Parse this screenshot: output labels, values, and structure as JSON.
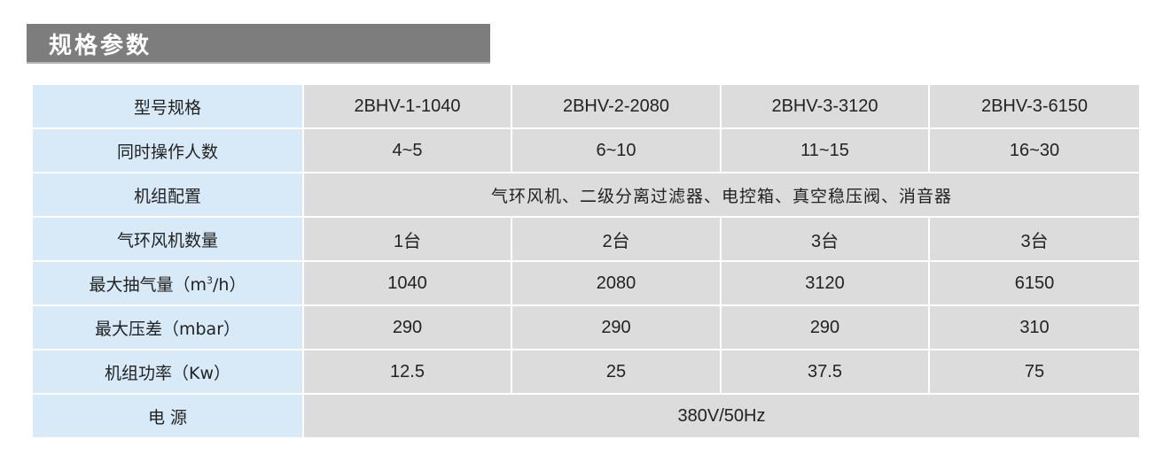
{
  "section_title": "规格参数",
  "table": {
    "model_label": "型号规格",
    "models": [
      "2BHV-1-1040",
      "2BHV-2-2080",
      "2BHV-3-3120",
      "2BHV-3-6150"
    ],
    "rows": [
      {
        "label": "同时操作人数",
        "values": [
          "4~5",
          "6~10",
          "11~15",
          "16~30"
        ]
      },
      {
        "label": "机组配置",
        "span_value": "气环风机、二级分离过滤器、电控箱、真空稳压阀、消音器"
      },
      {
        "label": "气环风机数量",
        "values": [
          "1台",
          "2台",
          "3台",
          "3台"
        ]
      },
      {
        "label_prefix": "最大抽气量（m",
        "label_sup": "3",
        "label_suffix": "/h）",
        "values": [
          "1040",
          "2080",
          "3120",
          "6150"
        ]
      },
      {
        "label": "最大压差（mbar）",
        "values": [
          "290",
          "290",
          "290",
          "310"
        ]
      },
      {
        "label": "机组功率（Kw）",
        "values": [
          "12.5",
          "25",
          "37.5",
          "75"
        ]
      },
      {
        "label": "电 源",
        "span_value": "380V/50Hz"
      }
    ]
  },
  "colors": {
    "title_bar": "#7d7d7d",
    "label_cell": "#d8eaf8",
    "value_cell": "#dcdcdc"
  }
}
